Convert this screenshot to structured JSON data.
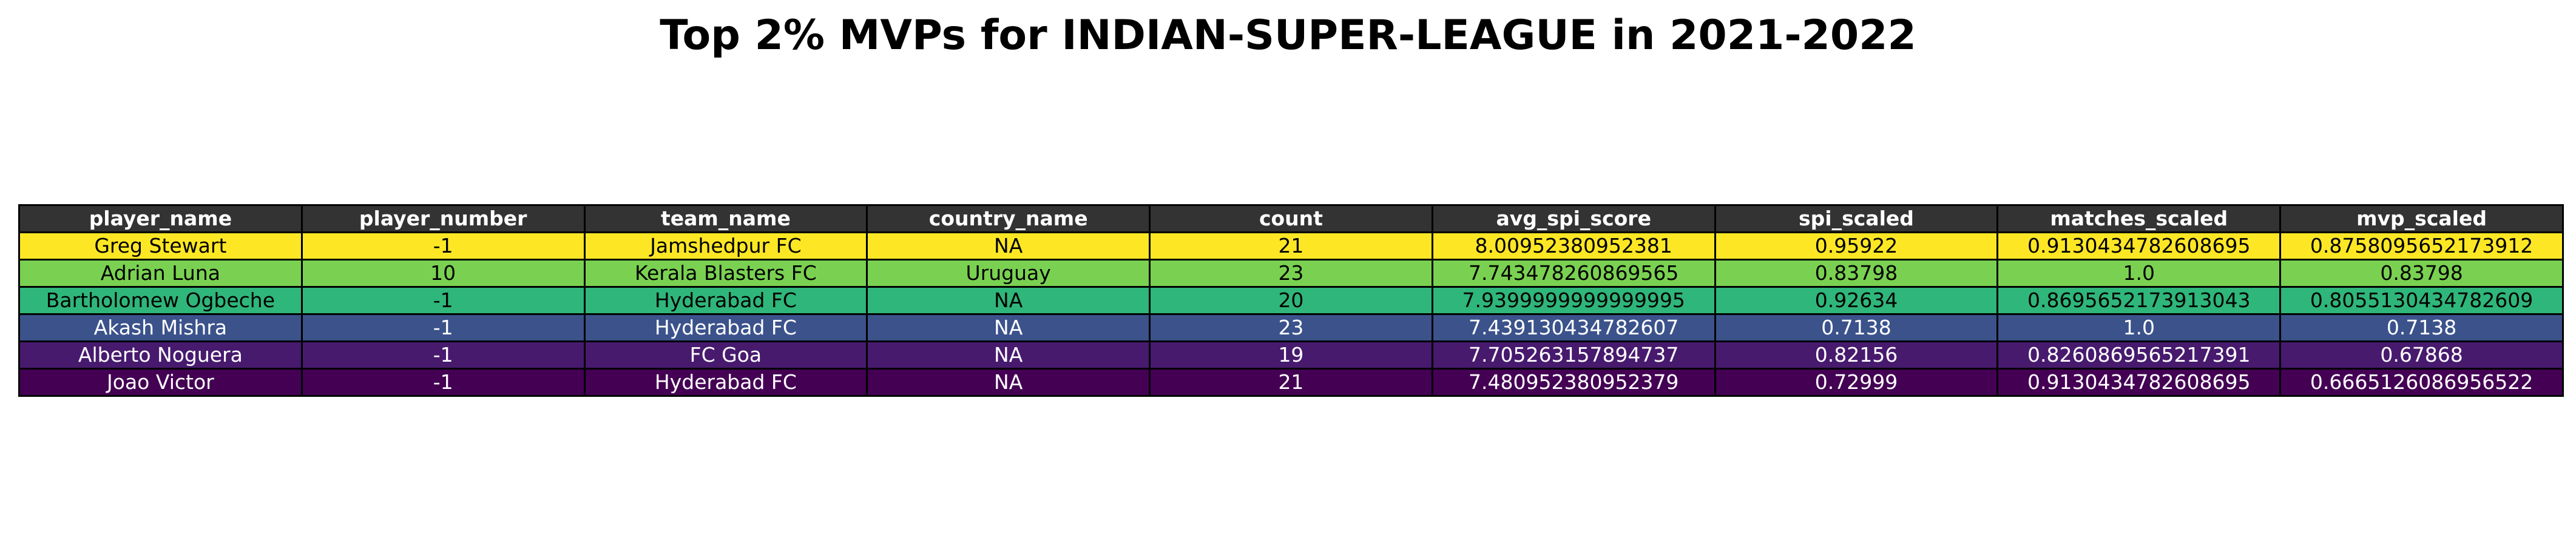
{
  "chart_data": {
    "type": "table",
    "title": "Top 2% MVPs for INDIAN-SUPER-LEAGUE in 2021-2022",
    "columns": [
      "player_name",
      "player_number",
      "team_name",
      "country_name",
      "count",
      "avg_spi_score",
      "spi_scaled",
      "matches_scaled",
      "mvp_scaled"
    ],
    "rows": [
      [
        "Greg Stewart",
        "-1",
        "Jamshedpur FC",
        "NA",
        "21",
        "8.00952380952381",
        "0.95922",
        "0.9130434782608695",
        "0.8758095652173912"
      ],
      [
        "Adrian Luna",
        "10",
        "Kerala Blasters FC",
        "Uruguay",
        "23",
        "7.743478260869565",
        "0.83798",
        "1.0",
        "0.83798"
      ],
      [
        "Bartholomew Ogbeche",
        "-1",
        "Hyderabad FC",
        "NA",
        "20",
        "7.9399999999999995",
        "0.92634",
        "0.8695652173913043",
        "0.8055130434782609"
      ],
      [
        "Akash Mishra",
        "-1",
        "Hyderabad FC",
        "NA",
        "23",
        "7.439130434782607",
        "0.7138",
        "1.0",
        "0.7138"
      ],
      [
        "Alberto Noguera",
        "-1",
        "FC Goa",
        "NA",
        "19",
        "7.705263157894737",
        "0.82156",
        "0.8260869565217391",
        "0.67868"
      ],
      [
        "Joao Victor",
        "-1",
        "Hyderabad FC",
        "NA",
        "21",
        "7.480952380952379",
        "0.72999",
        "0.9130434782608695",
        "0.6665126086956522"
      ]
    ],
    "row_colors": [
      "#fde725",
      "#7ad151",
      "#2fb67a",
      "#3b528b",
      "#471a6e",
      "#440154"
    ],
    "row_text_colors": [
      "#000000",
      "#000000",
      "#000000",
      "#ffffff",
      "#ffffff",
      "#ffffff"
    ],
    "header_color": "#333333",
    "header_text_color": "#ffffff"
  }
}
